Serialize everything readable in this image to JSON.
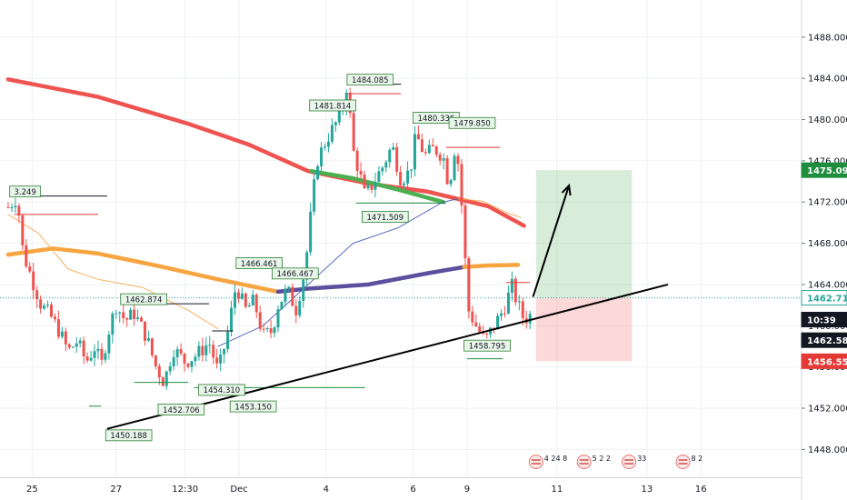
{
  "chart_data": {
    "type": "candlestick",
    "title": "",
    "xlabel": "",
    "ylabel": "",
    "ylim": [
      1445.3,
      1491.6
    ],
    "grid": true,
    "x_ticks": [
      {
        "label": "25",
        "u": 0.8
      },
      {
        "label": "27",
        "u": 3.6
      },
      {
        "label": "12:30",
        "u": 5.9
      },
      {
        "label": "Dec",
        "u": 7.7
      },
      {
        "label": "4",
        "u": 10.6
      },
      {
        "label": "6",
        "u": 13.5
      },
      {
        "label": "9",
        "u": 15.3
      },
      {
        "label": "11",
        "u": 18.3
      },
      {
        "label": "13",
        "u": 21.3
      },
      {
        "label": "16",
        "u": 23.1
      }
    ],
    "y_ticks": [
      1448.0,
      1452.0,
      1456.0,
      1460.0,
      1464.0,
      1468.0,
      1472.0,
      1476.0,
      1480.0,
      1484.0,
      1488.0
    ],
    "price_tags": [
      {
        "label": "1475.092",
        "y": 1475.092,
        "color": "#1e8e3e"
      },
      {
        "label": "1462.712",
        "y": 1462.712,
        "color": "#26a69a",
        "style": "outline"
      },
      {
        "label": "10:39",
        "y": 1460.6,
        "color": "#131722"
      },
      {
        "label": "1462.584",
        "y": 1458.6,
        "color": "#131722"
      },
      {
        "label": "1456.559",
        "y": 1456.559,
        "color": "#e53935"
      }
    ],
    "current_price": 1462.712,
    "annotations": [
      {
        "label": "1473.249",
        "display": "3.249",
        "u": 0.05,
        "y": 1473.55,
        "line_to": 3.3
      },
      {
        "label": "1462.874",
        "u": 3.75,
        "y": 1463.1,
        "line_to": 6.7
      },
      {
        "label": "1466.461",
        "u": 7.6,
        "y": 1466.6,
        "line_to": 8.3
      },
      {
        "label": "1466.467",
        "u": 8.8,
        "y": 1465.6,
        "line_to": 9.6
      },
      {
        "label": "1481.814",
        "u": 10.05,
        "y": 1481.9,
        "line_to": 11.1
      },
      {
        "label": "1484.085",
        "u": 11.3,
        "y": 1484.4,
        "line_to": 13.1
      },
      {
        "label": "1480.336",
        "u": 13.5,
        "y": 1480.7,
        "line_to": 14.5
      },
      {
        "label": "1479.850",
        "u": 14.7,
        "y": 1480.2,
        "line_to": 15.9
      },
      {
        "label": "1471.509",
        "u": 11.8,
        "y": 1471.1,
        "line_to": 12.9
      },
      {
        "label": "1450.188",
        "u": 3.25,
        "y": 1449.9,
        "line_to": 3.3
      },
      {
        "label": "1452.706",
        "u": 5.0,
        "y": 1452.4,
        "line_to": 5.0
      },
      {
        "label": "1454.310",
        "u": 6.35,
        "y": 1454.3,
        "line_to": 6.3
      },
      {
        "label": "1453.150",
        "u": 7.4,
        "y": 1452.7,
        "line_to": 7.3
      },
      {
        "label": "1458.795",
        "u": 15.2,
        "y": 1458.6,
        "line_to": 15.2
      }
    ],
    "trendline": {
      "from": {
        "u": 3.3,
        "y": 1450.0
      },
      "to": {
        "u": 22.0,
        "y": 1464.0
      }
    },
    "long_position": {
      "u_from": 17.6,
      "u_to": 20.8,
      "entry": 1462.712,
      "target": 1475.092,
      "stop": 1456.559
    },
    "arrow": {
      "from": {
        "u": 17.5,
        "y": 1462.8
      },
      "to": {
        "u": 18.7,
        "y": 1473.6
      }
    },
    "moving_averages": [
      {
        "color": "#ef5350",
        "points": [
          [
            0,
            1483.9
          ],
          [
            3,
            1482.2
          ],
          [
            6,
            1479.6
          ],
          [
            8,
            1477.6
          ],
          [
            10,
            1475.0
          ],
          [
            12,
            1473.8
          ],
          [
            14,
            1473.0
          ],
          [
            16,
            1471.6
          ],
          [
            17.2,
            1469.7
          ]
        ]
      },
      {
        "color": "#f7a541",
        "points": [
          [
            0,
            1466.9
          ],
          [
            1.5,
            1467.5
          ],
          [
            3,
            1467.0
          ],
          [
            5,
            1465.8
          ],
          [
            7,
            1464.5
          ],
          [
            9,
            1463.3
          ]
        ]
      },
      {
        "color": "#5c4f9e",
        "points": [
          [
            9,
            1463.3
          ],
          [
            10,
            1463.6
          ],
          [
            12,
            1464.0
          ],
          [
            14,
            1465.1
          ],
          [
            15.2,
            1465.7
          ]
        ]
      },
      {
        "color": "#f7a541",
        "points": [
          [
            15.2,
            1465.7
          ],
          [
            16,
            1465.85
          ],
          [
            17,
            1465.9
          ]
        ]
      },
      {
        "color": "#4caf50",
        "points": [
          [
            10.1,
            1475.0
          ],
          [
            11.5,
            1474.3
          ],
          [
            13,
            1473.2
          ],
          [
            14.5,
            1472.0
          ]
        ]
      },
      {
        "color": "#f7a541",
        "thin": true,
        "points": [
          [
            0,
            1470.8
          ],
          [
            1,
            1469.0
          ],
          [
            2,
            1465.5
          ],
          [
            3,
            1464.5
          ],
          [
            4.5,
            1463.7
          ],
          [
            6,
            1461.5
          ],
          [
            7,
            1459.7
          ]
        ]
      },
      {
        "color": "#3f51b5",
        "thin": true,
        "points": [
          [
            7,
            1458.0
          ],
          [
            8.5,
            1460.0
          ],
          [
            10,
            1464.0
          ],
          [
            11.5,
            1468.0
          ],
          [
            13,
            1469.5
          ],
          [
            14.5,
            1472.0
          ],
          [
            15,
            1472.3
          ]
        ]
      },
      {
        "color": "#f7a541",
        "thin": true,
        "points": [
          [
            15,
            1472.3
          ],
          [
            15.8,
            1472.1
          ],
          [
            16.6,
            1471.0
          ],
          [
            17.1,
            1470.5
          ]
        ]
      }
    ],
    "price_path": [
      [
        0,
        1471.5
      ],
      [
        0.3,
        1472.5
      ],
      [
        0.5,
        1467.0
      ],
      [
        0.8,
        1464.5
      ],
      [
        1.1,
        1462.0
      ],
      [
        1.4,
        1461.0
      ],
      [
        1.7,
        1459.5
      ],
      [
        2.0,
        1457.5
      ],
      [
        2.3,
        1458.5
      ],
      [
        2.6,
        1456.5
      ],
      [
        2.9,
        1458.0
      ],
      [
        3.1,
        1456.0
      ],
      [
        3.3,
        1459.0
      ],
      [
        3.6,
        1462.0
      ],
      [
        3.9,
        1460.5
      ],
      [
        4.2,
        1461.2
      ],
      [
        4.6,
        1459.0
      ],
      [
        4.9,
        1456.2
      ],
      [
        5.2,
        1454.5
      ],
      [
        5.5,
        1457.8
      ],
      [
        5.9,
        1456.5
      ],
      [
        6.3,
        1457.2
      ],
      [
        6.7,
        1458.4
      ],
      [
        7.0,
        1455.5
      ],
      [
        7.3,
        1459.0
      ],
      [
        7.6,
        1464.0
      ],
      [
        7.9,
        1461.5
      ],
      [
        8.2,
        1462.4
      ],
      [
        8.5,
        1459.0
      ],
      [
        8.8,
        1459.5
      ],
      [
        9.0,
        1462.0
      ],
      [
        9.3,
        1463.5
      ],
      [
        9.6,
        1461.6
      ],
      [
        9.9,
        1465.5
      ],
      [
        10.1,
        1471.0
      ],
      [
        10.3,
        1476.0
      ],
      [
        10.6,
        1478.0
      ],
      [
        10.9,
        1479.5
      ],
      [
        11.1,
        1480.5
      ],
      [
        11.3,
        1483.5
      ],
      [
        11.5,
        1477.0
      ],
      [
        11.7,
        1475.0
      ],
      [
        11.9,
        1472.5
      ],
      [
        12.2,
        1474.0
      ],
      [
        12.5,
        1475.5
      ],
      [
        12.8,
        1477.5
      ],
      [
        13.1,
        1474.2
      ],
      [
        13.4,
        1475.0
      ],
      [
        13.6,
        1478.5
      ],
      [
        13.9,
        1476.5
      ],
      [
        14.2,
        1477.2
      ],
      [
        14.5,
        1476.5
      ],
      [
        14.7,
        1473.5
      ],
      [
        14.9,
        1477.5
      ],
      [
        15.05,
        1475.0
      ],
      [
        15.2,
        1468.0
      ],
      [
        15.35,
        1461.5
      ],
      [
        15.6,
        1460.0
      ],
      [
        15.9,
        1458.5
      ],
      [
        16.2,
        1460.0
      ],
      [
        16.5,
        1461.5
      ],
      [
        16.8,
        1463.8
      ],
      [
        17.0,
        1462.0
      ],
      [
        17.2,
        1460.6
      ],
      [
        17.4,
        1461.0
      ],
      [
        17.45,
        1462.7
      ]
    ],
    "support_lines": [
      {
        "color": "#1e8e3e",
        "y": 1454.5,
        "u1": 4.2,
        "u2": 6.0
      },
      {
        "color": "#1e8e3e",
        "y": 1452.2,
        "u1": 2.7,
        "u2": 3.1
      },
      {
        "color": "#1e8e3e",
        "y": 1454.0,
        "u1": 6.2,
        "u2": 11.9
      },
      {
        "color": "#1e8e3e",
        "y": 1471.9,
        "u1": 11.6,
        "u2": 14.6
      },
      {
        "color": "#1e8e3e",
        "y": 1456.8,
        "u1": 15.3,
        "u2": 16.5
      },
      {
        "color": "#e53935",
        "y": 1470.8,
        "u1": 0.2,
        "u2": 3.0
      },
      {
        "color": "#e53935",
        "y": 1465.2,
        "u1": 8.9,
        "u2": 9.9
      },
      {
        "color": "#e53935",
        "y": 1482.5,
        "u1": 11.3,
        "u2": 13.1
      },
      {
        "color": "#e53935",
        "y": 1477.3,
        "u1": 14.6,
        "u2": 16.4
      },
      {
        "color": "#e53935",
        "y": 1464.2,
        "u1": 16.6,
        "u2": 17.4
      },
      {
        "color": "#131722",
        "y": 1459.5,
        "u1": 6.8,
        "u2": 7.5
      }
    ],
    "events": [
      {
        "u": 17.6,
        "label": "4 24 8"
      },
      {
        "u": 19.2,
        "label": "5 2 2"
      },
      {
        "u": 20.7,
        "label": "33"
      },
      {
        "u": 22.5,
        "label": "8 2"
      }
    ],
    "colors": {
      "up": "#26a69a",
      "down": "#ef5350",
      "grid": "#eef0f4",
      "axis": "#787b86"
    }
  }
}
